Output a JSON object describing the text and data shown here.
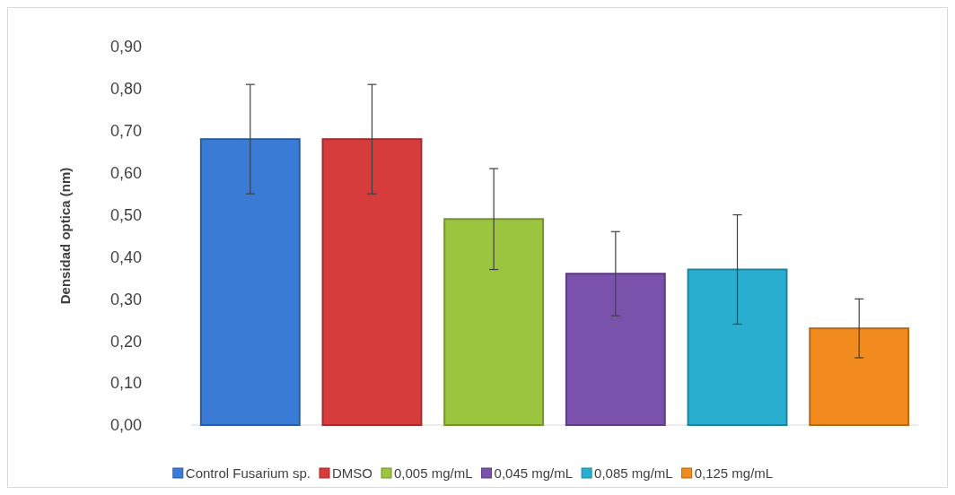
{
  "chart_data": {
    "type": "bar",
    "ylabel": "Densidad optica (nm)",
    "categories": [
      null
    ],
    "series": [
      {
        "name": "Control Fusarium sp.",
        "color": "#3a7bd5",
        "values": [
          0.68
        ],
        "errors": [
          0.13
        ]
      },
      {
        "name": "DMSO",
        "color": "#d63c3c",
        "values": [
          0.68
        ],
        "errors": [
          0.13
        ]
      },
      {
        "name": "0,005 mg/mL",
        "color": "#9bc43f",
        "values": [
          0.49
        ],
        "errors": [
          0.12
        ]
      },
      {
        "name": "0,045 mg/mL",
        "color": "#7b52ab",
        "values": [
          0.36
        ],
        "errors": [
          0.1
        ]
      },
      {
        "name": "0,085 mg/mL",
        "color": "#2aaed0",
        "values": [
          0.37
        ],
        "errors": [
          0.13
        ]
      },
      {
        "name": "0,125 mg/mL",
        "color": "#f28b1e",
        "values": [
          0.23
        ],
        "errors": [
          0.07
        ]
      }
    ],
    "ylim": [
      0,
      0.9
    ],
    "yticks": [
      {
        "value": 0,
        "label": "0,00"
      },
      {
        "value": 0.1,
        "label": "0,10"
      },
      {
        "value": 0.2,
        "label": "0,20"
      },
      {
        "value": 0.3,
        "label": "0,30"
      },
      {
        "value": 0.4,
        "label": "0,40"
      },
      {
        "value": 0.5,
        "label": "0,50"
      },
      {
        "value": 0.6,
        "label": "0,60"
      },
      {
        "value": 0.7,
        "label": "0,70"
      },
      {
        "value": 0.8,
        "label": "0,80"
      },
      {
        "value": 0.9,
        "label": "0,90"
      }
    ],
    "grid": false,
    "legend": "bottom"
  }
}
